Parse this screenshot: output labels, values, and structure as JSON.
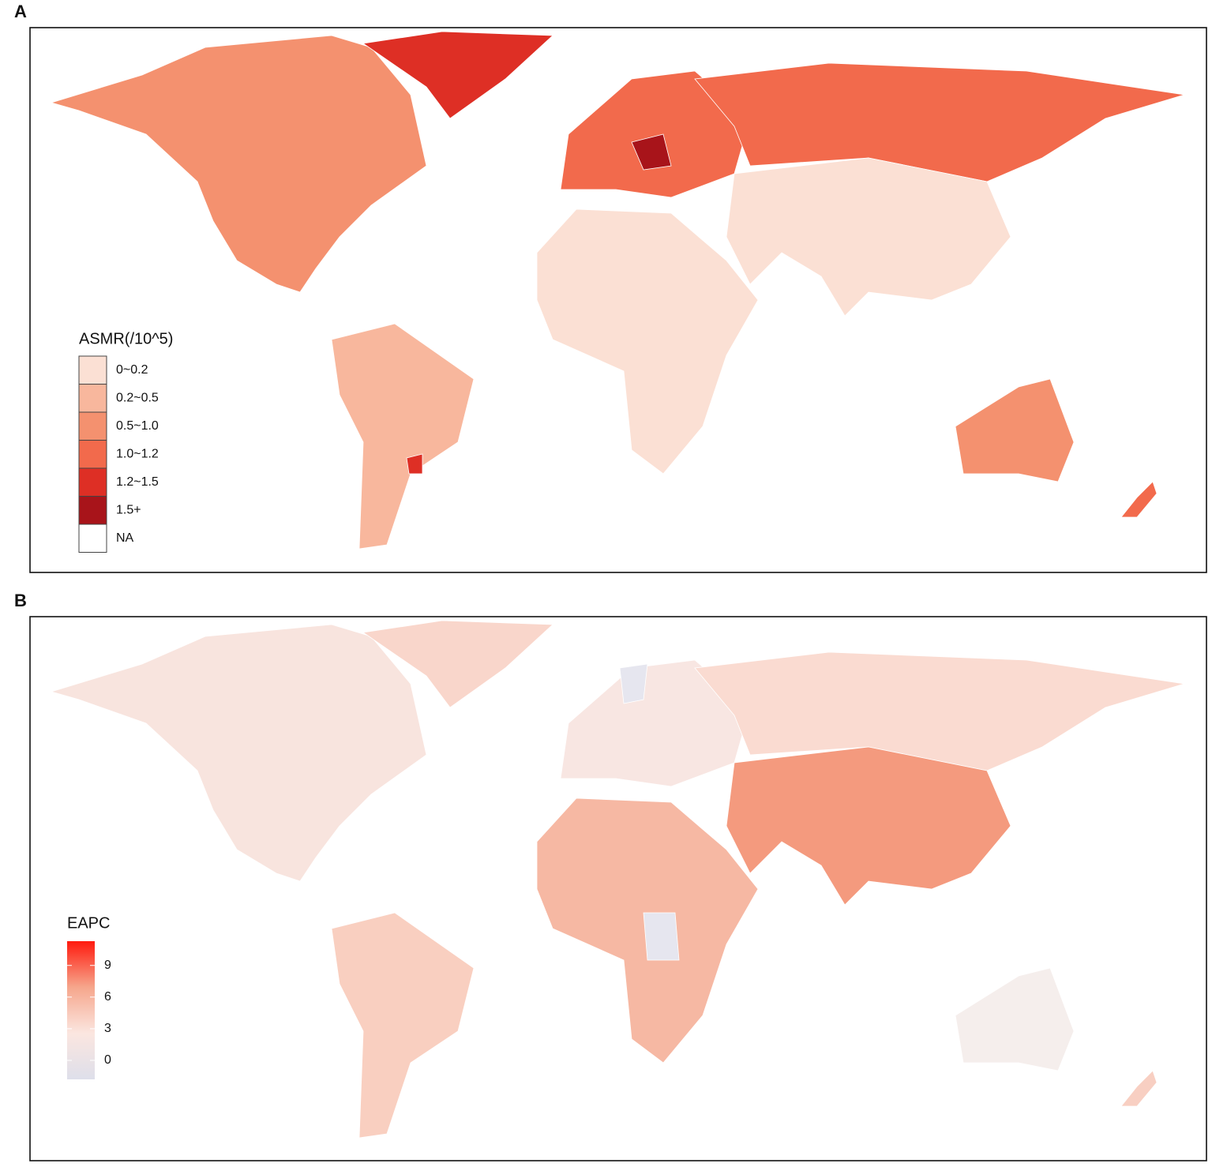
{
  "panels": [
    {
      "label": "A",
      "legend": {
        "title": "ASMR(/10^5)",
        "items": [
          {
            "label": "0~0.2",
            "color": "#fbe0d4"
          },
          {
            "label": "0.2~0.5",
            "color": "#f8b79d"
          },
          {
            "label": "0.5~1.0",
            "color": "#f4916f"
          },
          {
            "label": "1.0~1.2",
            "color": "#f26a4c"
          },
          {
            "label": "1.2~1.5",
            "color": "#de2f25"
          },
          {
            "label": "1.5+",
            "color": "#a8141a"
          },
          {
            "label": "NA",
            "color": "#ffffff"
          }
        ]
      }
    },
    {
      "label": "B",
      "legend": {
        "title": "EAPC",
        "lim": [
          -1.8,
          11.3
        ],
        "ticks": [
          0,
          3,
          6,
          9
        ],
        "colors": [
          "#dedfea",
          "#fbe6e0",
          "#f6a68c",
          "#ff1a0e"
        ]
      }
    }
  ]
}
